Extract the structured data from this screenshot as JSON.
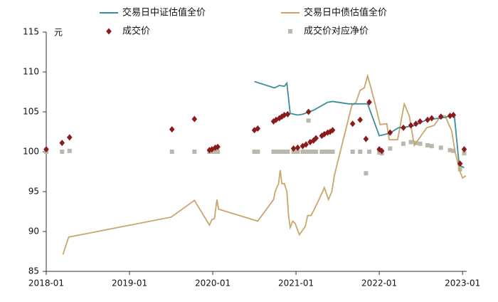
{
  "chart_data": {
    "type": "combo",
    "y_label": "元",
    "xlim": [
      2018,
      2023.05
    ],
    "xticks": [
      {
        "value": 2018,
        "label": "2018-01"
      },
      {
        "value": 2019,
        "label": "2019-01"
      },
      {
        "value": 2020,
        "label": "2020-01"
      },
      {
        "value": 2021,
        "label": "2021-01"
      },
      {
        "value": 2022,
        "label": "2022-01"
      },
      {
        "value": 2023,
        "label": "2023-01"
      }
    ],
    "ylim": [
      85,
      115
    ],
    "yticks": [
      85,
      90,
      95,
      100,
      105,
      110,
      115
    ],
    "grid": false,
    "series": [
      {
        "name": "交易日中证估值全价",
        "type": "line",
        "color": "#3d8c9c",
        "x": [
          2020.5,
          2020.74,
          2020.8,
          2020.86,
          2020.89,
          2020.93,
          2021.02,
          2021.08,
          2021.21,
          2021.38,
          2021.44,
          2021.63,
          2021.86,
          2022.0,
          2022.12,
          2022.23,
          2022.4,
          2022.57,
          2022.79,
          2022.9,
          2022.96,
          2023.02
        ],
        "values": [
          108.8,
          108.0,
          108.3,
          108.2,
          108.6,
          104.8,
          104.6,
          104.7,
          105.2,
          106.2,
          106.3,
          106.0,
          106.0,
          102.0,
          102.3,
          103.0,
          103.2,
          104.0,
          104.3,
          104.7,
          98.3,
          98.0
        ]
      },
      {
        "name": "交易日中债估值全价",
        "type": "line",
        "color": "#c9a66b",
        "x": [
          2018.2,
          2018.27,
          2019.5,
          2019.78,
          2019.96,
          2019.99,
          2020.02,
          2020.05,
          2020.07,
          2020.54,
          2020.73,
          2020.75,
          2020.79,
          2020.81,
          2020.83,
          2020.86,
          2020.89,
          2020.91,
          2020.93,
          2020.96,
          2020.99,
          2021.04,
          2021.11,
          2021.14,
          2021.18,
          2021.23,
          2021.32,
          2021.34,
          2021.39,
          2021.43,
          2021.46,
          2021.67,
          2021.72,
          2021.77,
          2021.82,
          2021.86,
          2021.9,
          2021.95,
          2022.01,
          2022.09,
          2022.12,
          2022.22,
          2022.3,
          2022.36,
          2022.42,
          2022.57,
          2022.66,
          2022.74,
          2022.79,
          2022.87,
          2022.91,
          2022.97,
          2023.0,
          2023.04
        ],
        "values": [
          87.1,
          89.3,
          91.8,
          93.9,
          90.8,
          91.5,
          91.6,
          94.0,
          92.8,
          91.3,
          94.0,
          95.0,
          96.0,
          97.7,
          96.0,
          96.0,
          95.0,
          92.0,
          90.5,
          91.3,
          91.0,
          89.6,
          90.6,
          92.0,
          92.0,
          93.0,
          95.0,
          95.5,
          94.0,
          95.0,
          97.0,
          105.8,
          106.2,
          107.7,
          108.0,
          109.5,
          108.0,
          106.0,
          103.4,
          103.5,
          101.5,
          101.5,
          106.0,
          104.5,
          100.8,
          103.0,
          103.3,
          104.5,
          104.5,
          102.6,
          100.0,
          97.5,
          96.7,
          97.0
        ]
      },
      {
        "name": "成交价",
        "type": "scatter",
        "marker": "diamond",
        "color": "#8b1a1a",
        "x": [
          2018.0,
          2018.19,
          2018.28,
          2019.51,
          2019.78,
          2019.96,
          2019.99,
          2020.03,
          2020.06,
          2020.5,
          2020.54,
          2020.73,
          2020.76,
          2020.8,
          2020.83,
          2020.86,
          2020.9,
          2020.97,
          2021.02,
          2021.08,
          2021.12,
          2021.15,
          2021.17,
          2021.21,
          2021.24,
          2021.31,
          2021.34,
          2021.38,
          2021.41,
          2021.44,
          2021.68,
          2021.77,
          2021.84,
          2021.88,
          2022.0,
          2022.03,
          2022.13,
          2022.29,
          2022.38,
          2022.44,
          2022.49,
          2022.58,
          2022.63,
          2022.74,
          2022.85,
          2022.89,
          2022.97,
          2023.02
        ],
        "values": [
          100.3,
          101.1,
          101.8,
          102.8,
          104.1,
          100.2,
          100.3,
          100.5,
          100.6,
          102.7,
          102.9,
          103.8,
          104.0,
          104.2,
          104.4,
          104.6,
          104.7,
          100.4,
          100.5,
          100.7,
          100.9,
          105.0,
          101.2,
          101.4,
          101.7,
          102.0,
          102.2,
          102.4,
          102.5,
          102.7,
          103.5,
          104.0,
          101.6,
          106.2,
          100.3,
          100.1,
          102.4,
          103.0,
          103.3,
          103.5,
          103.8,
          104.0,
          104.2,
          104.4,
          104.5,
          104.6,
          98.5,
          100.3
        ]
      },
      {
        "name": "成交价对应净价",
        "type": "scatter",
        "marker": "square",
        "color": "#b8b8ab",
        "x": [
          2018.0,
          2018.19,
          2018.28,
          2019.51,
          2019.78,
          2019.96,
          2019.99,
          2020.03,
          2020.06,
          2020.5,
          2020.54,
          2020.73,
          2020.76,
          2020.8,
          2020.83,
          2020.86,
          2020.9,
          2020.97,
          2021.02,
          2021.08,
          2021.12,
          2021.15,
          2021.17,
          2021.21,
          2021.24,
          2021.31,
          2021.34,
          2021.38,
          2021.41,
          2021.44,
          2021.68,
          2021.77,
          2021.84,
          2021.88,
          2022.0,
          2022.03,
          2022.13,
          2022.29,
          2022.38,
          2022.44,
          2022.49,
          2022.58,
          2022.63,
          2022.74,
          2022.85,
          2022.89,
          2022.97,
          2023.02
        ],
        "values": [
          100.0,
          100.0,
          100.1,
          100.0,
          100.0,
          100.0,
          100.0,
          100.0,
          100.0,
          100.0,
          100.0,
          100.0,
          100.0,
          100.0,
          100.0,
          100.0,
          100.0,
          100.0,
          100.0,
          100.0,
          100.0,
          103.9,
          100.0,
          100.0,
          100.0,
          100.0,
          100.0,
          100.0,
          100.0,
          100.0,
          100.0,
          100.0,
          97.3,
          100.0,
          99.9,
          99.8,
          100.4,
          101.0,
          101.2,
          101.1,
          101.0,
          100.8,
          100.7,
          100.5,
          100.2,
          100.1,
          97.8,
          99.8
        ]
      }
    ]
  }
}
